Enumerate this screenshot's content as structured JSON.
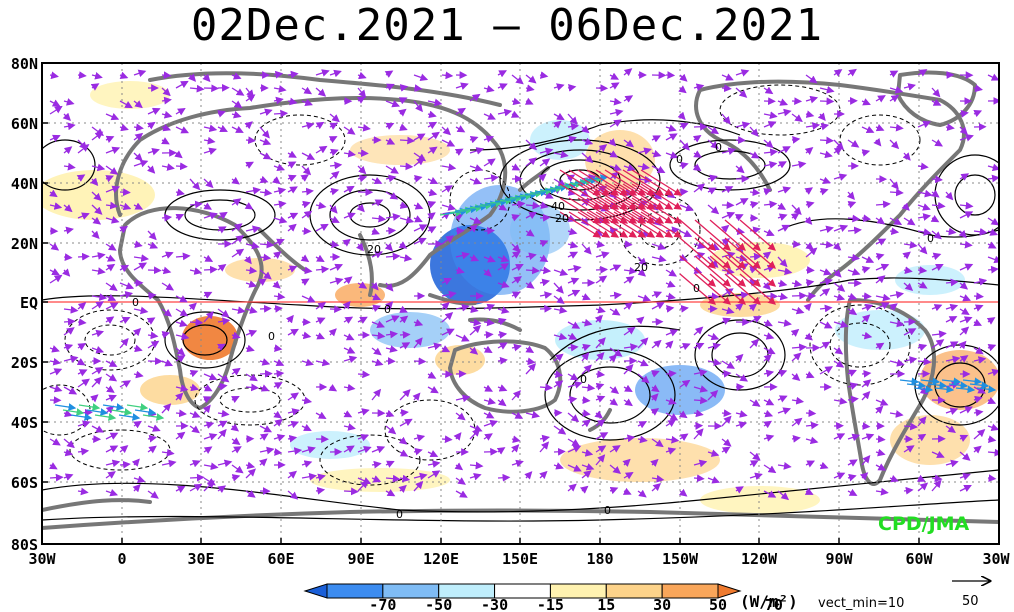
{
  "title": "02Dec.2021 – 06Dec.2021",
  "credit": "CPD/JMA",
  "latitude_labels": [
    "80N",
    "60N",
    "40N",
    "20N",
    "EQ",
    "20S",
    "40S",
    "60S",
    "80S"
  ],
  "longitude_labels": [
    "30W",
    "0",
    "30E",
    "60E",
    "90E",
    "120E",
    "150E",
    "180",
    "150W",
    "120W",
    "90W",
    "60W",
    "30W"
  ],
  "colorbar": {
    "labels": [
      "-70",
      "-50",
      "-30",
      "-15",
      "15",
      "30",
      "50",
      "70"
    ],
    "colors": [
      "#1a5fd8",
      "#3c8cf0",
      "#7fbcf5",
      "#bfeefc",
      "#ffffff",
      "#fff2b0",
      "#fdd38a",
      "#f9a65a",
      "#ef7a2e"
    ],
    "units": "(W/m²)"
  },
  "vector_info": {
    "vect_min_label": "vect_min=10",
    "reference_value": "50"
  },
  "contour_labels": [
    "0",
    "0",
    "0",
    "0",
    "0",
    "20",
    "20",
    "40",
    "20",
    "0",
    "0",
    "0",
    "0",
    "0"
  ],
  "colors": {
    "vector_main": "#9a2be2",
    "vector_strong": "#1f8fe0",
    "vector_stronger": "#40d080",
    "vector_strongest": "#e0205a",
    "equator_line": "#ff4444",
    "coastline": "#777777",
    "credit": "#22dd22"
  }
}
